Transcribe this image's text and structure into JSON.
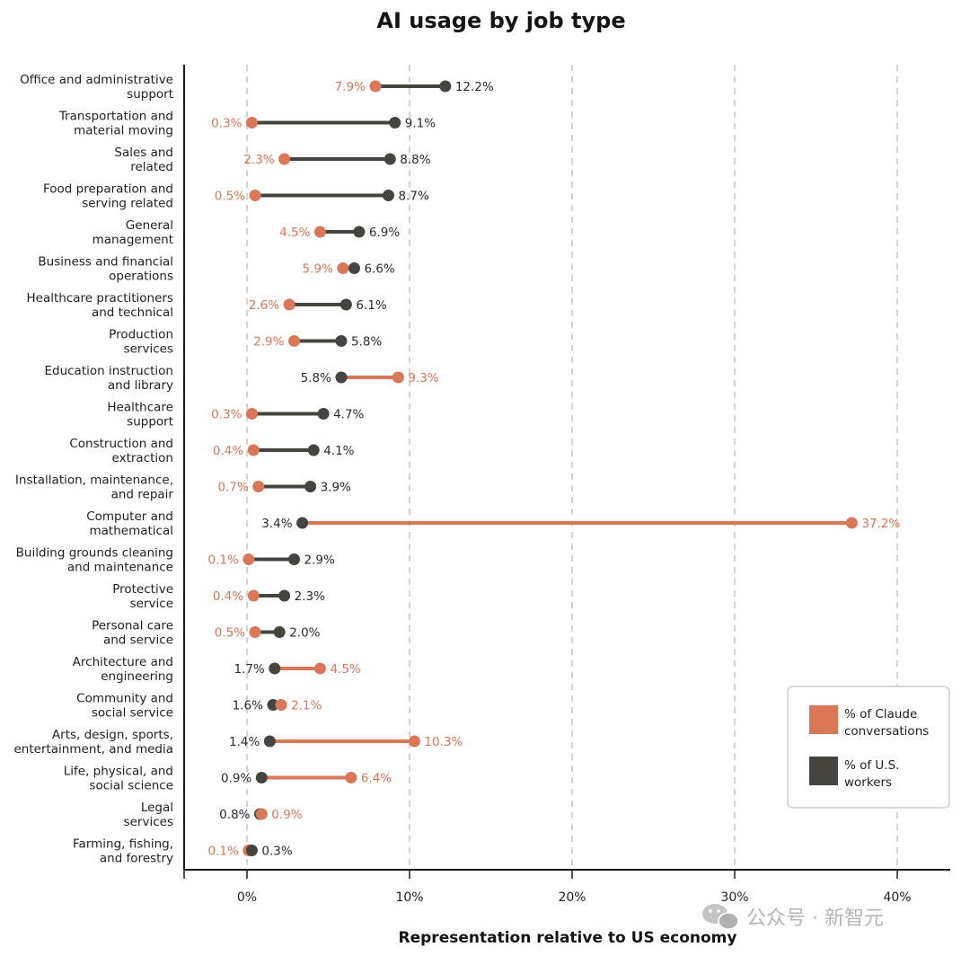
{
  "chart_data": {
    "type": "dumbbell",
    "title": "AI usage by job type",
    "xlabel": "Representation relative to US economy",
    "ylabel": "",
    "xlim": [
      -3.8,
      43
    ],
    "xticks": [
      0,
      10,
      20,
      30,
      40
    ],
    "xtick_labels": [
      "0%",
      "10%",
      "20%",
      "30%",
      "40%"
    ],
    "grid": "vertical dashed",
    "colors": {
      "claude": "#d97757",
      "workers": "#45443f"
    },
    "series": [
      {
        "key": "claude",
        "name": "% of Claude conversations"
      },
      {
        "key": "workers",
        "name": "% of U.S. workers"
      }
    ],
    "legend_position": "bottom-right",
    "categories": [
      {
        "line1": "Office and administrative",
        "line2": "support",
        "claude": 7.9,
        "claude_label": "7.9%",
        "workers": 12.2,
        "workers_label": "12.2%"
      },
      {
        "line1": "Transportation and",
        "line2": "material moving",
        "claude": 0.3,
        "claude_label": "0.3%",
        "workers": 9.1,
        "workers_label": "9.1%"
      },
      {
        "line1": "Sales and",
        "line2": "related",
        "claude": 2.3,
        "claude_label": "2.3%",
        "workers": 8.8,
        "workers_label": "8.8%"
      },
      {
        "line1": "Food preparation and",
        "line2": "serving related",
        "claude": 0.5,
        "claude_label": "0.5%",
        "workers": 8.7,
        "workers_label": "8.7%"
      },
      {
        "line1": "General",
        "line2": "management",
        "claude": 4.5,
        "claude_label": "4.5%",
        "workers": 6.9,
        "workers_label": "6.9%"
      },
      {
        "line1": "Business and financial",
        "line2": "operations",
        "claude": 5.9,
        "claude_label": "5.9%",
        "workers": 6.6,
        "workers_label": "6.6%"
      },
      {
        "line1": "Healthcare practitioners",
        "line2": "and technical",
        "claude": 2.6,
        "claude_label": "2.6%",
        "workers": 6.1,
        "workers_label": "6.1%"
      },
      {
        "line1": "Production",
        "line2": "services",
        "claude": 2.9,
        "claude_label": "2.9%",
        "workers": 5.8,
        "workers_label": "5.8%"
      },
      {
        "line1": "Education instruction",
        "line2": "and library",
        "claude": 9.3,
        "claude_label": "9.3%",
        "workers": 5.8,
        "workers_label": "5.8%"
      },
      {
        "line1": "Healthcare",
        "line2": "support",
        "claude": 0.3,
        "claude_label": "0.3%",
        "workers": 4.7,
        "workers_label": "4.7%"
      },
      {
        "line1": "Construction and",
        "line2": "extraction",
        "claude": 0.4,
        "claude_label": "0.4%",
        "workers": 4.1,
        "workers_label": "4.1%"
      },
      {
        "line1": "Installation, maintenance,",
        "line2": "and repair",
        "claude": 0.7,
        "claude_label": "0.7%",
        "workers": 3.9,
        "workers_label": "3.9%"
      },
      {
        "line1": "Computer and",
        "line2": "mathematical",
        "claude": 37.2,
        "claude_label": "37.2%",
        "workers": 3.4,
        "workers_label": "3.4%"
      },
      {
        "line1": "Building grounds cleaning",
        "line2": "and maintenance",
        "claude": 0.1,
        "claude_label": "0.1%",
        "workers": 2.9,
        "workers_label": "2.9%"
      },
      {
        "line1": "Protective",
        "line2": "service",
        "claude": 0.4,
        "claude_label": "0.4%",
        "workers": 2.3,
        "workers_label": "2.3%"
      },
      {
        "line1": "Personal care",
        "line2": "and service",
        "claude": 0.5,
        "claude_label": "0.5%",
        "workers": 2.0,
        "workers_label": "2.0%"
      },
      {
        "line1": "Architecture and",
        "line2": "engineering",
        "claude": 4.5,
        "claude_label": "4.5%",
        "workers": 1.7,
        "workers_label": "1.7%"
      },
      {
        "line1": "Community and",
        "line2": "social service",
        "claude": 2.1,
        "claude_label": "2.1%",
        "workers": 1.6,
        "workers_label": "1.6%"
      },
      {
        "line1": "Arts, design, sports,",
        "line2": "entertainment, and media",
        "claude": 10.3,
        "claude_label": "10.3%",
        "workers": 1.4,
        "workers_label": "1.4%"
      },
      {
        "line1": "Life, physical, and",
        "line2": "social science",
        "claude": 6.4,
        "claude_label": "6.4%",
        "workers": 0.9,
        "workers_label": "0.9%"
      },
      {
        "line1": "Legal",
        "line2": "services",
        "claude": 0.9,
        "claude_label": "0.9%",
        "workers": 0.8,
        "workers_label": "0.8%"
      },
      {
        "line1": "Farming, fishing,",
        "line2": "and forestry",
        "claude": 0.1,
        "claude_label": "0.1%",
        "workers": 0.3,
        "workers_label": "0.3%"
      }
    ]
  },
  "legend": {
    "claude_line1": "% of Claude",
    "claude_line2": "conversations",
    "workers_line1": "% of U.S.",
    "workers_line2": "workers"
  },
  "watermark": {
    "text": "公众号 · 新智元",
    "icon": "wechat-icon"
  }
}
